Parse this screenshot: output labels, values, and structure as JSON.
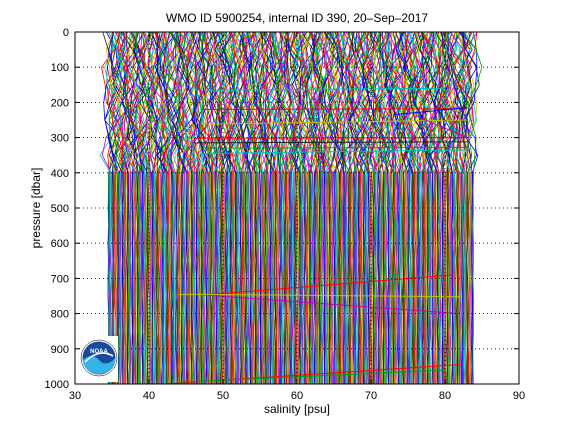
{
  "chart_data": {
    "type": "line",
    "title": "WMO ID 5900254, internal ID 390, 20–Sep–2017",
    "xlabel": "salinity [psu]",
    "ylabel": "pressure [dbar]",
    "xlim": [
      30,
      90
    ],
    "ylim": [
      1000,
      0
    ],
    "y_reversed": true,
    "xticks": [
      30,
      40,
      50,
      60,
      70,
      80,
      90
    ],
    "yticks": [
      0,
      100,
      200,
      300,
      400,
      500,
      600,
      700,
      800,
      900,
      1000
    ],
    "grid": "dotted",
    "profile_count": 520,
    "profile_offset_start": 34.5,
    "profile_offset_step": 0.095,
    "series_colors": [
      "#0000ff",
      "#00a000",
      "#ff0000",
      "#00c0c0",
      "#c000c0",
      "#c0c000",
      "#202020"
    ],
    "crossing_lines": [
      {
        "x0": 47,
        "x1": 83,
        "p0": 220,
        "p1": 218,
        "color": "#ff0000"
      },
      {
        "x0": 47,
        "x1": 83,
        "p0": 262,
        "p1": 250,
        "color": "#c0c000"
      },
      {
        "x0": 46,
        "x1": 83,
        "p0": 302,
        "p1": 300,
        "color": "#ff0000"
      },
      {
        "x0": 46,
        "x1": 83,
        "p0": 315,
        "p1": 312,
        "color": "#202020"
      },
      {
        "x0": 47,
        "x1": 83,
        "p0": 330,
        "p1": 328,
        "color": "#00a000"
      },
      {
        "x0": 47,
        "x1": 83,
        "p0": 345,
        "p1": 335,
        "color": "#00c0c0"
      },
      {
        "x0": 48,
        "x1": 80,
        "p0": 165,
        "p1": 160,
        "color": "#00c0c0"
      },
      {
        "x0": 47,
        "x1": 81,
        "p0": 748,
        "p1": 690,
        "color": "#ff0000"
      },
      {
        "x0": 48,
        "x1": 82,
        "p0": 748,
        "p1": 800,
        "color": "#c000c0"
      },
      {
        "x0": 44,
        "x1": 82,
        "p0": 745,
        "p1": 752,
        "color": "#c0c000"
      },
      {
        "x0": 42,
        "x1": 82,
        "p0": 1000,
        "p1": 945,
        "color": "#ff0000"
      },
      {
        "x0": 44,
        "x1": 80,
        "p0": 995,
        "p1": 960,
        "color": "#00a000"
      },
      {
        "x0": 73,
        "x1": 83,
        "p0": 235,
        "p1": 215,
        "color": "#0000ff"
      },
      {
        "x0": 76,
        "x1": 83,
        "p0": 238,
        "p1": 300,
        "color": "#c000c0"
      }
    ],
    "logo": {
      "text": "NOAA",
      "colors": [
        "#1a4a9c",
        "#33b4e8",
        "#ffffff"
      ]
    }
  }
}
